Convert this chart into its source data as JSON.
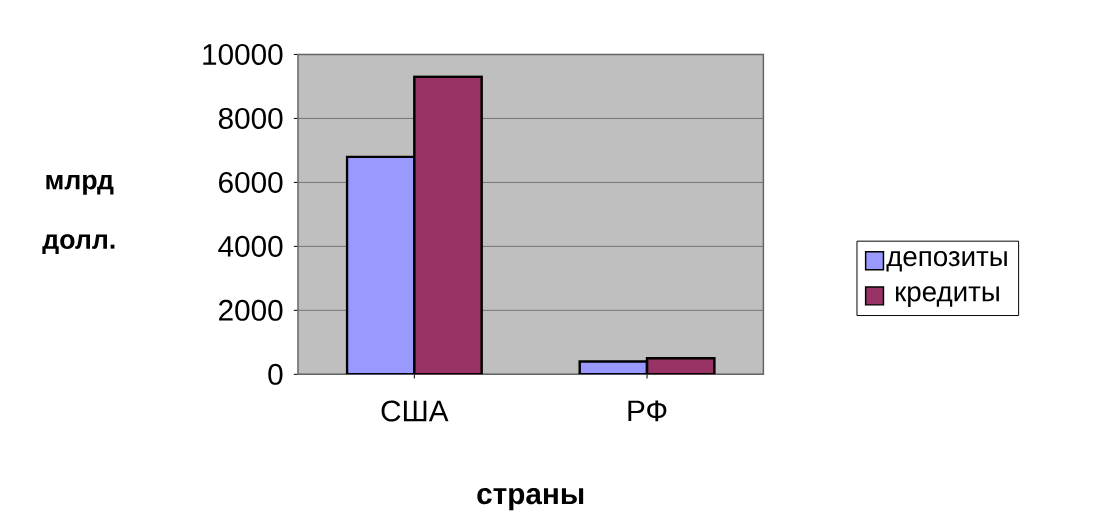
{
  "chart_data": {
    "type": "bar",
    "xlabel": "страны",
    "ylabel": "млрд долл.",
    "categories": [
      "США",
      "РФ"
    ],
    "series": [
      {
        "name": "депозиты",
        "color": "#9999ff",
        "values": [
          6800,
          400
        ]
      },
      {
        "name": "кредиты",
        "color": "#993366",
        "values": [
          9300,
          500
        ]
      }
    ],
    "ylim": [
      0,
      10000
    ],
    "yticks": [
      0,
      2000,
      4000,
      6000,
      8000,
      10000
    ],
    "grid": "y",
    "legend": "right"
  }
}
